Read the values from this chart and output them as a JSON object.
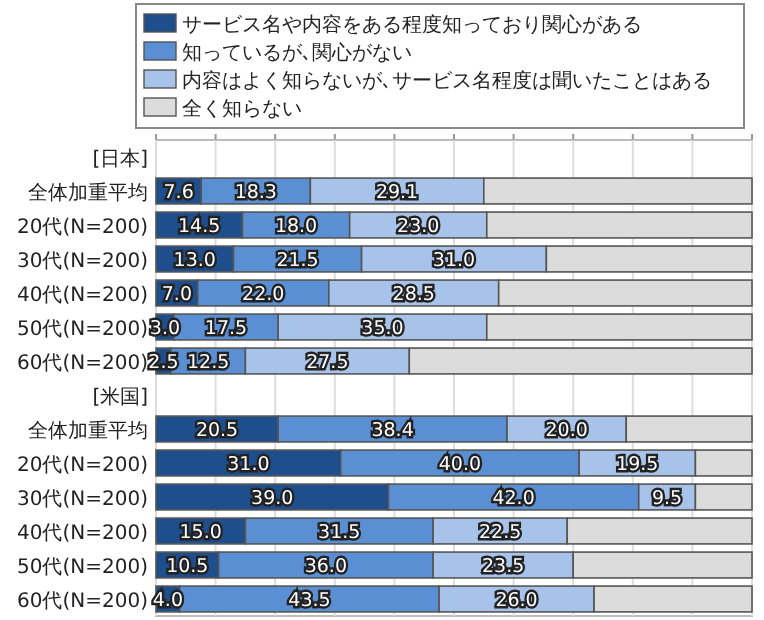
{
  "chart_data": {
    "type": "bar",
    "orientation": "horizontal",
    "stacked": true,
    "categories": [
      "[日本]",
      "全体加重平均",
      "20代(N=200)",
      "30代(N=200)",
      "40代(N=200)",
      "50代(N=200)",
      "60代(N=200)",
      "[米国]",
      "全体加重平均",
      "20代(N=200)",
      "30代(N=200)",
      "40代(N=200)",
      "50代(N=200)",
      "60代(N=200)"
    ],
    "series": [
      {
        "name": "サービス名や内容をある程度知っており関心がある",
        "color": "#1f4e8c",
        "values": [
          null,
          7.6,
          14.5,
          13.0,
          7.0,
          3.0,
          2.5,
          null,
          20.5,
          31.0,
          39.0,
          15.0,
          10.5,
          4.0
        ],
        "value_labels": [
          null,
          "7.6",
          "14.5",
          "13.0",
          "7.0",
          "3.0",
          "2.5",
          null,
          "20.5",
          "31.0",
          "39.0",
          "15.0",
          "10.5",
          "4.0"
        ]
      },
      {
        "name": "知っているが､関心がない",
        "color": "#5b8fd4",
        "values": [
          null,
          18.3,
          18.0,
          21.5,
          22.0,
          17.5,
          12.5,
          null,
          38.4,
          40.0,
          42.0,
          31.5,
          36.0,
          43.5
        ],
        "value_labels": [
          null,
          "18.3",
          "18.0",
          "21.5",
          "22.0",
          "17.5",
          "12.5",
          null,
          "38.4",
          "40.0",
          "42.0",
          "31.5",
          "36.0",
          "43.5"
        ]
      },
      {
        "name": "内容はよく知らないが､サービス名程度は聞いたことはある",
        "color": "#a8c3ea",
        "values": [
          null,
          29.1,
          23.0,
          31.0,
          28.5,
          35.0,
          27.5,
          null,
          20.0,
          19.5,
          9.5,
          22.5,
          23.5,
          26.0
        ],
        "value_labels": [
          null,
          "29.1",
          "23.0",
          "31.0",
          "28.5",
          "35.0",
          "27.5",
          null,
          "20.0",
          "19.5",
          "9.5",
          "22.5",
          "23.5",
          "26.0"
        ]
      },
      {
        "name": "全く知らない",
        "color": "#dcdcdc",
        "values": [
          null,
          45.0,
          44.5,
          34.5,
          42.5,
          44.5,
          57.5,
          null,
          21.1,
          9.5,
          9.5,
          31.0,
          30.0,
          26.5
        ]
      }
    ],
    "xlim": [
      0,
      100
    ],
    "xticks": [
      {
        "value": 0,
        "label": null
      },
      {
        "value": 10,
        "label": null
      },
      {
        "value": 20,
        "label": null
      },
      {
        "value": 30,
        "label": null
      },
      {
        "value": 40,
        "label": null
      },
      {
        "value": 50,
        "label": null
      },
      {
        "value": 60,
        "label": null
      },
      {
        "value": 70,
        "label": null
      },
      {
        "value": 80,
        "label": null
      },
      {
        "value": 90,
        "label": null
      },
      {
        "value": 100,
        "label": null
      }
    ],
    "tick_labels": "y",
    "grid": "x",
    "legend": "top"
  }
}
